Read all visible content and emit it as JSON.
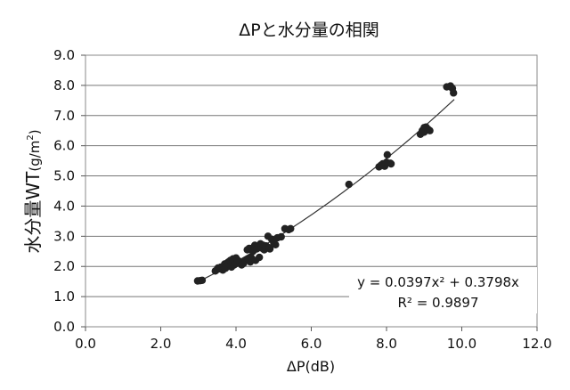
{
  "chart_data": {
    "type": "scatter",
    "title": "ΔPと水分量の相関",
    "xlabel": "ΔP(dB)",
    "ylabel_main": "水分量WT",
    "ylabel_unit": "(g/m",
    "ylabel_sup": "2",
    "ylabel_close": ")",
    "xlim": [
      0,
      12
    ],
    "ylim": [
      0,
      9
    ],
    "x_ticks": [
      "0.0",
      "2.0",
      "4.0",
      "6.0",
      "8.0",
      "10.0",
      "12.0"
    ],
    "y_ticks": [
      "0.0",
      "1.0",
      "2.0",
      "3.0",
      "4.0",
      "5.0",
      "6.0",
      "7.0",
      "8.0",
      "9.0"
    ],
    "grid": true,
    "equation": "y = 0.0397x² + 0.3798x",
    "r_squared": "R² = 0.9897",
    "trendline": {
      "type": "polynomial",
      "a": 0.0397,
      "b": 0.3798,
      "c": 0,
      "x_range": [
        3.0,
        9.8
      ]
    },
    "point_color": "#222222",
    "points": [
      [
        2.98,
        1.52
      ],
      [
        3.05,
        1.53
      ],
      [
        3.1,
        1.54
      ],
      [
        3.45,
        1.85
      ],
      [
        3.5,
        1.9
      ],
      [
        3.52,
        1.95
      ],
      [
        3.58,
        1.92
      ],
      [
        3.6,
        1.98
      ],
      [
        3.65,
        1.88
      ],
      [
        3.68,
        2.0
      ],
      [
        3.7,
        2.08
      ],
      [
        3.72,
        1.94
      ],
      [
        3.75,
        2.1
      ],
      [
        3.78,
        2.02
      ],
      [
        3.8,
        2.15
      ],
      [
        3.83,
        2.05
      ],
      [
        3.85,
        2.2
      ],
      [
        3.88,
        1.98
      ],
      [
        3.9,
        2.12
      ],
      [
        3.92,
        2.25
      ],
      [
        3.95,
        2.05
      ],
      [
        3.98,
        2.18
      ],
      [
        4.0,
        2.28
      ],
      [
        4.02,
        2.1
      ],
      [
        4.05,
        2.2
      ],
      [
        4.1,
        2.15
      ],
      [
        4.15,
        2.05
      ],
      [
        4.2,
        2.1
      ],
      [
        4.25,
        2.2
      ],
      [
        4.3,
        2.55
      ],
      [
        4.32,
        2.25
      ],
      [
        4.35,
        2.6
      ],
      [
        4.38,
        2.15
      ],
      [
        4.4,
        2.3
      ],
      [
        4.45,
        2.5
      ],
      [
        4.48,
        2.65
      ],
      [
        4.5,
        2.7
      ],
      [
        4.52,
        2.2
      ],
      [
        4.55,
        2.58
      ],
      [
        4.6,
        2.62
      ],
      [
        4.62,
        2.3
      ],
      [
        4.65,
        2.75
      ],
      [
        4.7,
        2.6
      ],
      [
        4.72,
        2.7
      ],
      [
        4.75,
        2.55
      ],
      [
        4.8,
        2.68
      ],
      [
        4.85,
        3.0
      ],
      [
        4.88,
        2.62
      ],
      [
        4.9,
        2.58
      ],
      [
        4.95,
        2.9
      ],
      [
        5.0,
        2.8
      ],
      [
        5.05,
        2.72
      ],
      [
        5.1,
        2.95
      ],
      [
        5.2,
        2.98
      ],
      [
        5.3,
        3.25
      ],
      [
        5.4,
        3.22
      ],
      [
        5.45,
        3.25
      ],
      [
        7.0,
        4.72
      ],
      [
        7.8,
        5.3
      ],
      [
        7.85,
        5.35
      ],
      [
        7.9,
        5.4
      ],
      [
        7.95,
        5.32
      ],
      [
        8.0,
        5.45
      ],
      [
        8.02,
        5.7
      ],
      [
        8.1,
        5.42
      ],
      [
        8.12,
        5.4
      ],
      [
        8.9,
        6.38
      ],
      [
        8.95,
        6.5
      ],
      [
        9.0,
        6.45
      ],
      [
        9.0,
        6.6
      ],
      [
        9.05,
        6.62
      ],
      [
        9.1,
        6.55
      ],
      [
        9.15,
        6.5
      ],
      [
        9.6,
        7.95
      ],
      [
        9.7,
        7.98
      ],
      [
        9.75,
        7.9
      ],
      [
        9.78,
        7.75
      ]
    ]
  }
}
